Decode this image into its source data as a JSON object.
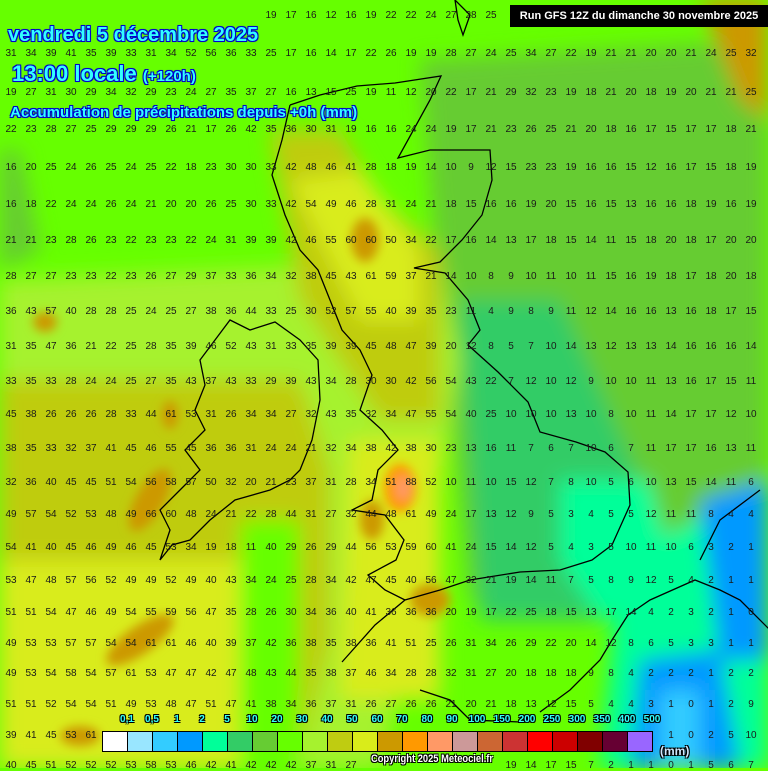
{
  "header": {
    "date": "vendredi 5 décembre 2025",
    "time": "13:00 locale",
    "lead": "(+120h)",
    "subtitle": "Accumulation de précipitations depuis +0h (mm)",
    "run": "Run GFS 12Z du dimanche 30 novembre 2025"
  },
  "legend": {
    "labels": [
      "0,1",
      "0,5",
      "1",
      "2",
      "5",
      "10",
      "20",
      "30",
      "40",
      "50",
      "60",
      "70",
      "80",
      "90",
      "100",
      "150",
      "200",
      "250",
      "300",
      "350",
      "400",
      "500"
    ],
    "colors": [
      "#ffffff",
      "#99e6ff",
      "#33ccff",
      "#0099ff",
      "#00ff99",
      "#33cc66",
      "#66cc33",
      "#66ff00",
      "#a6f22e",
      "#bfcc11",
      "#d9ec1a",
      "#cc9900",
      "#ff9900",
      "#ff9966",
      "#cc9999",
      "#cc6633",
      "#cc3333",
      "#ff0000",
      "#cc0000",
      "#800000",
      "#660033",
      "#9966ff"
    ],
    "unit": "(mm)"
  },
  "copyright": "Copyright 2025 Meteociel.fr",
  "grid": {
    "rows": [
      [
        null,
        null,
        null,
        null,
        null,
        null,
        null,
        null,
        null,
        null,
        null,
        null,
        null,
        19,
        17,
        16,
        12,
        16,
        19,
        22,
        22,
        24,
        27,
        28,
        25,
        null,
        null,
        null,
        null,
        null,
        null,
        null,
        null,
        null,
        null,
        null,
        null,
        null
      ],
      [
        31,
        34,
        39,
        41,
        35,
        39,
        33,
        31,
        34,
        52,
        56,
        36,
        33,
        25,
        17,
        16,
        14,
        17,
        22,
        26,
        19,
        19,
        28,
        27,
        24,
        25,
        34,
        27,
        22,
        19,
        21,
        21,
        20,
        20,
        21,
        24,
        25,
        32
      ],
      [
        19,
        27,
        31,
        30,
        29,
        34,
        32,
        29,
        23,
        24,
        27,
        35,
        37,
        27,
        16,
        13,
        15,
        25,
        19,
        11,
        12,
        20,
        22,
        17,
        21,
        29,
        32,
        23,
        19,
        18,
        21,
        20,
        18,
        19,
        20,
        21,
        21,
        25
      ],
      [
        22,
        23,
        28,
        27,
        25,
        29,
        29,
        29,
        26,
        21,
        17,
        26,
        42,
        35,
        36,
        30,
        31,
        19,
        16,
        16,
        24,
        24,
        19,
        17,
        21,
        23,
        26,
        25,
        21,
        20,
        18,
        16,
        17,
        15,
        17,
        17,
        18,
        21
      ],
      [
        16,
        20,
        25,
        24,
        26,
        25,
        24,
        25,
        22,
        18,
        23,
        30,
        30,
        33,
        42,
        48,
        46,
        41,
        28,
        18,
        19,
        14,
        10,
        9,
        12,
        15,
        23,
        23,
        19,
        16,
        16,
        15,
        12,
        16,
        17,
        15,
        18,
        19
      ],
      [
        16,
        18,
        22,
        24,
        24,
        26,
        24,
        21,
        20,
        20,
        26,
        25,
        30,
        33,
        42,
        54,
        49,
        46,
        28,
        31,
        24,
        21,
        18,
        15,
        16,
        16,
        19,
        20,
        15,
        16,
        15,
        13,
        16,
        16,
        18,
        19,
        16,
        19
      ],
      [
        21,
        21,
        23,
        28,
        26,
        23,
        22,
        23,
        23,
        22,
        24,
        31,
        39,
        39,
        42,
        46,
        55,
        60,
        60,
        50,
        34,
        22,
        17,
        16,
        14,
        13,
        17,
        18,
        15,
        14,
        11,
        15,
        18,
        20,
        18,
        17,
        20,
        20
      ],
      [
        28,
        27,
        27,
        23,
        23,
        22,
        23,
        26,
        27,
        29,
        37,
        33,
        36,
        34,
        32,
        38,
        45,
        43,
        61,
        59,
        37,
        21,
        14,
        10,
        8,
        9,
        10,
        11,
        10,
        11,
        15,
        16,
        19,
        18,
        17,
        18,
        20,
        18
      ],
      [
        36,
        43,
        57,
        40,
        28,
        28,
        25,
        24,
        25,
        27,
        38,
        36,
        44,
        33,
        25,
        30,
        52,
        57,
        55,
        40,
        39,
        35,
        23,
        11,
        4,
        9,
        8,
        9,
        11,
        12,
        14,
        16,
        16,
        13,
        16,
        18,
        17,
        15
      ],
      [
        31,
        35,
        47,
        36,
        21,
        22,
        25,
        28,
        35,
        39,
        46,
        52,
        43,
        31,
        33,
        35,
        39,
        39,
        45,
        48,
        47,
        39,
        20,
        12,
        8,
        5,
        7,
        10,
        14,
        13,
        12,
        13,
        13,
        14,
        16,
        16,
        16,
        14
      ],
      [
        33,
        35,
        33,
        28,
        24,
        24,
        25,
        27,
        35,
        43,
        37,
        43,
        33,
        29,
        39,
        43,
        34,
        28,
        30,
        30,
        42,
        56,
        54,
        43,
        22,
        7,
        12,
        10,
        12,
        9,
        10,
        10,
        11,
        13,
        16,
        17,
        15,
        11
      ],
      [
        45,
        38,
        26,
        26,
        26,
        28,
        33,
        44,
        61,
        53,
        31,
        26,
        34,
        34,
        27,
        32,
        43,
        35,
        32,
        34,
        47,
        55,
        54,
        40,
        25,
        10,
        10,
        10,
        13,
        10,
        8,
        10,
        11,
        14,
        17,
        17,
        12,
        10
      ],
      [
        38,
        35,
        33,
        32,
        37,
        41,
        45,
        46,
        55,
        45,
        36,
        36,
        31,
        24,
        24,
        21,
        32,
        34,
        38,
        42,
        38,
        30,
        23,
        13,
        16,
        11,
        7,
        6,
        7,
        10,
        6,
        7,
        11,
        17,
        17,
        16,
        13,
        11
      ],
      [
        32,
        36,
        40,
        45,
        45,
        51,
        54,
        56,
        58,
        57,
        50,
        32,
        20,
        21,
        23,
        37,
        31,
        28,
        34,
        51,
        88,
        52,
        10,
        11,
        10,
        15,
        12,
        7,
        8,
        10,
        5,
        6,
        10,
        13,
        15,
        14,
        11,
        6
      ],
      [
        49,
        57,
        54,
        52,
        53,
        48,
        49,
        66,
        60,
        48,
        24,
        21,
        22,
        28,
        44,
        31,
        27,
        32,
        44,
        48,
        61,
        49,
        24,
        17,
        13,
        12,
        9,
        5,
        3,
        4,
        5,
        5,
        12,
        11,
        11,
        8,
        4,
        4
      ],
      [
        54,
        41,
        40,
        45,
        46,
        49,
        46,
        45,
        53,
        34,
        19,
        18,
        11,
        40,
        29,
        26,
        29,
        44,
        56,
        53,
        59,
        60,
        41,
        24,
        15,
        14,
        12,
        5,
        4,
        3,
        5,
        10,
        11,
        10,
        6,
        3,
        2,
        1
      ],
      [
        53,
        47,
        48,
        57,
        56,
        52,
        49,
        49,
        52,
        49,
        40,
        43,
        34,
        24,
        25,
        28,
        34,
        42,
        47,
        45,
        40,
        56,
        47,
        32,
        21,
        19,
        14,
        11,
        7,
        5,
        8,
        9,
        12,
        5,
        4,
        2,
        1,
        1
      ],
      [
        51,
        51,
        54,
        47,
        46,
        49,
        54,
        55,
        59,
        56,
        47,
        35,
        28,
        26,
        30,
        34,
        36,
        40,
        41,
        36,
        36,
        36,
        20,
        19,
        17,
        22,
        25,
        18,
        15,
        13,
        17,
        14,
        4,
        2,
        3,
        2,
        1,
        0
      ],
      [
        49,
        53,
        53,
        57,
        57,
        54,
        54,
        61,
        61,
        46,
        40,
        39,
        37,
        42,
        36,
        38,
        35,
        38,
        36,
        41,
        51,
        25,
        26,
        31,
        34,
        26,
        29,
        22,
        20,
        14,
        12,
        8,
        6,
        5,
        3,
        3,
        1,
        1
      ],
      [
        49,
        53,
        54,
        58,
        54,
        57,
        61,
        53,
        47,
        47,
        42,
        47,
        48,
        43,
        44,
        35,
        38,
        37,
        46,
        34,
        28,
        28,
        32,
        31,
        27,
        20,
        18,
        18,
        18,
        9,
        8,
        4,
        2,
        2,
        2,
        1,
        2,
        2
      ],
      [
        51,
        51,
        52,
        54,
        54,
        51,
        49,
        53,
        48,
        47,
        51,
        47,
        41,
        38,
        34,
        36,
        37,
        31,
        26,
        27,
        26,
        26,
        21,
        20,
        21,
        18,
        13,
        12,
        15,
        5,
        4,
        4,
        3,
        1,
        0,
        1,
        2,
        9
      ],
      [
        39,
        41,
        45,
        53,
        61,
        null,
        null,
        null,
        null,
        null,
        null,
        null,
        null,
        null,
        null,
        null,
        null,
        null,
        null,
        null,
        null,
        null,
        null,
        null,
        null,
        null,
        null,
        null,
        null,
        null,
        null,
        null,
        null,
        1,
        0,
        2,
        5,
        10
      ],
      [
        40,
        45,
        51,
        52,
        52,
        52,
        53,
        58,
        53,
        46,
        42,
        41,
        42,
        42,
        42,
        37,
        31,
        27,
        null,
        null,
        null,
        null,
        null,
        null,
        null,
        19,
        14,
        17,
        15,
        7,
        2,
        1,
        1,
        0,
        1,
        5,
        6,
        7
      ]
    ]
  }
}
